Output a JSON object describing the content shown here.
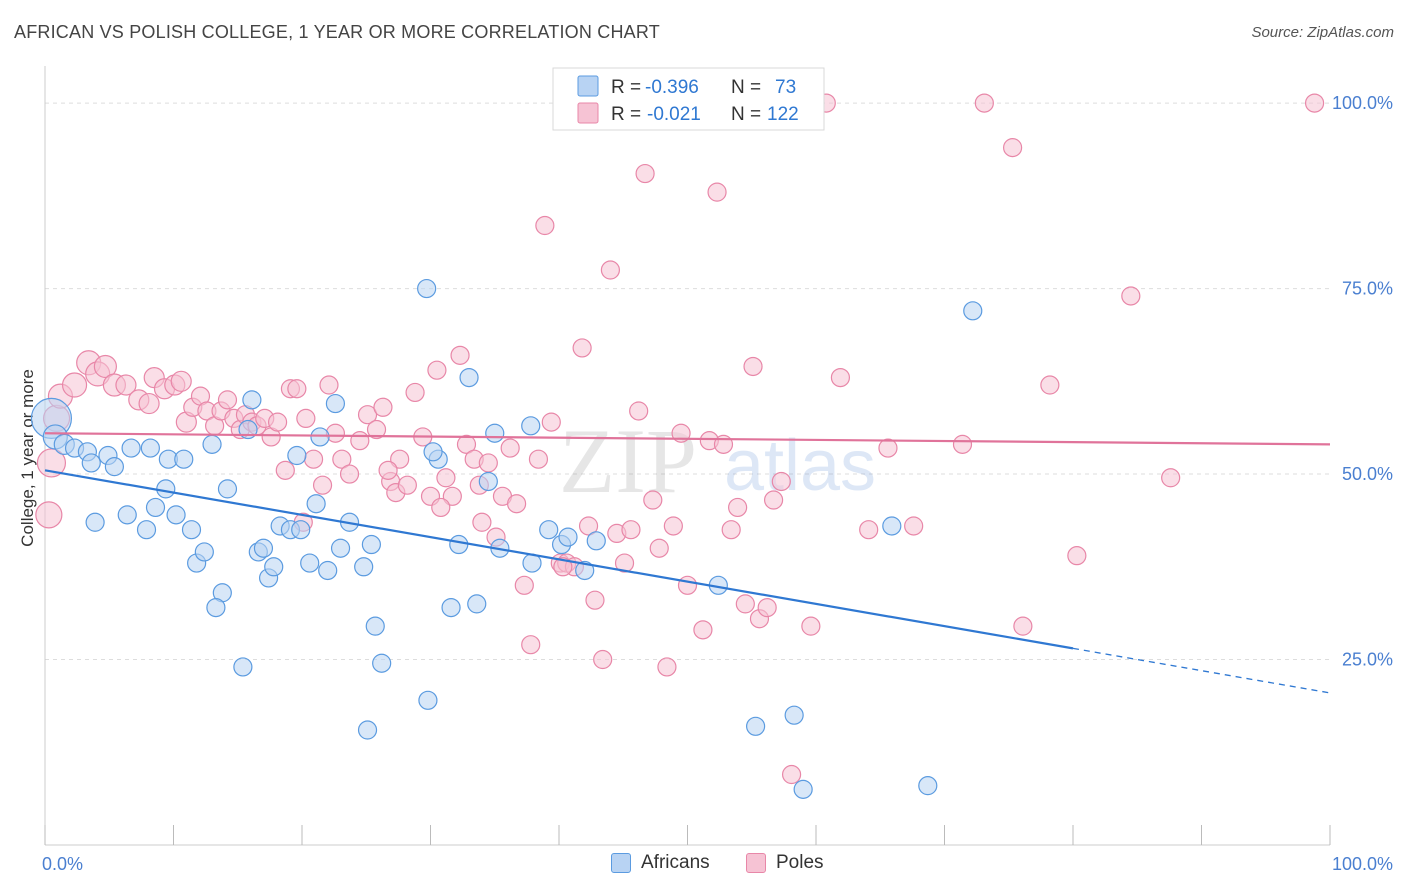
{
  "title": "AFRICAN VS POLISH COLLEGE, 1 YEAR OR MORE CORRELATION CHART",
  "source": "Source: ZipAtlas.com",
  "watermark": {
    "zip": "ZIP",
    "atlas": "atlas"
  },
  "colors": {
    "blue": "#5b9be0",
    "blue_fill": "#b8d3f3",
    "blue_line": "#2f78d2",
    "pink": "#e887a8",
    "pink_fill": "#f6c3d4",
    "pink_line": "#e0739a",
    "axis_text": "#4a7fd0",
    "grid": "#dddddd"
  },
  "legend": {
    "rows": [
      {
        "r_label": "R = ",
        "r_value": "-0.396",
        "n_label": "N = ",
        "n_value": "73"
      },
      {
        "r_label": "R = ",
        "r_value": "-0.021",
        "n_label": "N = ",
        "n_value": "122"
      }
    ],
    "bottom": [
      "Africans",
      "Poles"
    ]
  },
  "chart_data": {
    "type": "scatter",
    "title": "AFRICAN VS POLISH COLLEGE, 1 YEAR OR MORE CORRELATION CHART",
    "xlabel": "",
    "ylabel": "College, 1 year or more",
    "xlim": [
      0,
      100
    ],
    "ylim": [
      0,
      105
    ],
    "x_tick_labels": [
      "0.0%",
      "100.0%"
    ],
    "y_tick_labels": [
      "25.0%",
      "50.0%",
      "75.0%",
      "100.0%"
    ],
    "y_ticks": [
      25,
      50,
      75,
      100
    ],
    "grid": true,
    "legend_position": "top-center",
    "series": [
      {
        "name": "Africans",
        "r": -0.396,
        "n": 73,
        "trend": {
          "x0": 0,
          "y0": 50.5,
          "x1": 80,
          "y1": 26.5,
          "dashed_to_x": 100,
          "dashed_to_y": 20.5
        },
        "points": [
          [
            0.5,
            57.5,
            20
          ],
          [
            0.8,
            55,
            12
          ],
          [
            1.5,
            54,
            10
          ],
          [
            2.3,
            53.5,
            9
          ],
          [
            3.3,
            53,
            9
          ],
          [
            3.6,
            51.5,
            9
          ],
          [
            4.9,
            52.5,
            9
          ],
          [
            5.4,
            51,
            9
          ],
          [
            6.7,
            53.5,
            9
          ],
          [
            8.2,
            53.5,
            9
          ],
          [
            9.6,
            52,
            9
          ],
          [
            10.8,
            52,
            9
          ],
          [
            13,
            54,
            9
          ],
          [
            15.8,
            56,
            9
          ],
          [
            16.1,
            60,
            9
          ],
          [
            3.9,
            43.5,
            9
          ],
          [
            6.4,
            44.5,
            9
          ],
          [
            7.9,
            42.5,
            9
          ],
          [
            8.6,
            45.5,
            9
          ],
          [
            9.4,
            48,
            9
          ],
          [
            10.2,
            44.5,
            9
          ],
          [
            11.4,
            42.5,
            9
          ],
          [
            11.8,
            38,
            9
          ],
          [
            12.4,
            39.5,
            9
          ],
          [
            14.2,
            48,
            9
          ],
          [
            13.8,
            34,
            9
          ],
          [
            13.3,
            32,
            9
          ],
          [
            15.4,
            24,
            9
          ],
          [
            16.6,
            39.5,
            9
          ],
          [
            17,
            40,
            9
          ],
          [
            17.4,
            36,
            9
          ],
          [
            17.8,
            37.5,
            9
          ],
          [
            18.3,
            43,
            9
          ],
          [
            19.1,
            42.5,
            9
          ],
          [
            19.6,
            52.5,
            9
          ],
          [
            19.9,
            42.5,
            9
          ],
          [
            20.6,
            38,
            9
          ],
          [
            21.1,
            46,
            9
          ],
          [
            21.4,
            55,
            9
          ],
          [
            22,
            37,
            9
          ],
          [
            22.6,
            59.5,
            9
          ],
          [
            23,
            40,
            9
          ],
          [
            23.7,
            43.5,
            9
          ],
          [
            24.8,
            37.5,
            9
          ],
          [
            25.4,
            40.5,
            9
          ],
          [
            25.7,
            29.5,
            9
          ],
          [
            26.2,
            24.5,
            9
          ],
          [
            29.7,
            75,
            9
          ],
          [
            30.6,
            52,
            9
          ],
          [
            29.8,
            19.5,
            9
          ],
          [
            31.6,
            32,
            9
          ],
          [
            33,
            63,
            9
          ],
          [
            32.2,
            40.5,
            9
          ],
          [
            33.6,
            32.5,
            9
          ],
          [
            34.5,
            49,
            9
          ],
          [
            35,
            55.5,
            9
          ],
          [
            35.4,
            40,
            9
          ],
          [
            37.8,
            56.5,
            9
          ],
          [
            25.1,
            15.5,
            9
          ],
          [
            40.2,
            40.5,
            9
          ],
          [
            40.7,
            41.5,
            9
          ],
          [
            42,
            37,
            9
          ],
          [
            42.9,
            41,
            9
          ],
          [
            52.4,
            35,
            9
          ],
          [
            55.3,
            16,
            9
          ],
          [
            58.3,
            17.5,
            9
          ],
          [
            59,
            7.5,
            9
          ],
          [
            65.9,
            43,
            9
          ],
          [
            68.7,
            8,
            9
          ],
          [
            72.2,
            72,
            9
          ],
          [
            37.9,
            38,
            9
          ],
          [
            30.2,
            53,
            9
          ],
          [
            39.2,
            42.5,
            9
          ]
        ]
      },
      {
        "name": "Poles",
        "r": -0.021,
        "n": 122,
        "trend": {
          "x0": 0,
          "y0": 55.5,
          "x1": 100,
          "y1": 54
        },
        "points": [
          [
            0.3,
            44.5,
            13
          ],
          [
            0.5,
            51.5,
            14
          ],
          [
            0.9,
            57.5,
            13
          ],
          [
            1.2,
            60.5,
            12
          ],
          [
            2.3,
            62,
            12
          ],
          [
            3.4,
            65,
            12
          ],
          [
            4.1,
            63.5,
            12
          ],
          [
            4.7,
            64.5,
            11
          ],
          [
            5.4,
            62,
            11
          ],
          [
            6.3,
            62,
            10
          ],
          [
            7.3,
            60,
            10
          ],
          [
            8.1,
            59.5,
            10
          ],
          [
            8.5,
            63,
            10
          ],
          [
            9.3,
            61.5,
            10
          ],
          [
            10.1,
            62,
            10
          ],
          [
            10.6,
            62.5,
            10
          ],
          [
            11,
            57,
            10
          ],
          [
            11.5,
            59,
            9
          ],
          [
            12.1,
            60.5,
            9
          ],
          [
            12.6,
            58.5,
            9
          ],
          [
            13.2,
            56.5,
            9
          ],
          [
            13.7,
            58.5,
            9
          ],
          [
            14.2,
            60,
            9
          ],
          [
            14.7,
            57.5,
            9
          ],
          [
            15.2,
            56,
            9
          ],
          [
            15.6,
            58,
            9
          ],
          [
            16.1,
            57,
            9
          ],
          [
            16.5,
            56.5,
            9
          ],
          [
            17.1,
            57.5,
            9
          ],
          [
            17.6,
            55,
            9
          ],
          [
            18.1,
            57,
            9
          ],
          [
            18.7,
            50.5,
            9
          ],
          [
            19.1,
            61.5,
            9
          ],
          [
            19.6,
            61.5,
            9
          ],
          [
            20.3,
            57.5,
            9
          ],
          [
            20.9,
            52,
            9
          ],
          [
            21.6,
            48.5,
            9
          ],
          [
            22.1,
            62,
            9
          ],
          [
            22.6,
            55.5,
            9
          ],
          [
            23.1,
            52,
            9
          ],
          [
            23.7,
            50,
            9
          ],
          [
            24.5,
            54.5,
            9
          ],
          [
            25.1,
            58,
            9
          ],
          [
            25.8,
            56,
            9
          ],
          [
            26.3,
            59,
            9
          ],
          [
            26.9,
            49,
            9
          ],
          [
            27.3,
            47.5,
            9
          ],
          [
            27.6,
            52,
            9
          ],
          [
            28.2,
            48.5,
            9
          ],
          [
            28.8,
            61,
            9
          ],
          [
            29.4,
            55,
            9
          ],
          [
            30,
            47,
            9
          ],
          [
            30.5,
            64,
            9
          ],
          [
            31.2,
            49.5,
            9
          ],
          [
            31.7,
            47,
            9
          ],
          [
            32.3,
            66,
            9
          ],
          [
            32.8,
            54,
            9
          ],
          [
            33.4,
            52,
            9
          ],
          [
            34,
            43.5,
            9
          ],
          [
            34.5,
            51.5,
            9
          ],
          [
            35.1,
            41.5,
            9
          ],
          [
            35.6,
            47,
            9
          ],
          [
            36.2,
            53.5,
            9
          ],
          [
            36.7,
            46,
            9
          ],
          [
            37.3,
            35,
            9
          ],
          [
            37.8,
            27,
            9
          ],
          [
            38.4,
            52,
            9
          ],
          [
            38.9,
            83.5,
            9
          ],
          [
            39.4,
            57,
            9
          ],
          [
            40.1,
            38,
            9
          ],
          [
            40.6,
            38,
            9
          ],
          [
            41.2,
            37.5,
            9
          ],
          [
            41.8,
            67,
            9
          ],
          [
            42.3,
            43,
            9
          ],
          [
            42.8,
            33,
            9
          ],
          [
            43.4,
            25,
            9
          ],
          [
            44,
            77.5,
            9
          ],
          [
            44.5,
            42,
            9
          ],
          [
            45.1,
            38,
            9
          ],
          [
            45.6,
            42.5,
            9
          ],
          [
            46.2,
            58.5,
            9
          ],
          [
            46.7,
            90.5,
            9
          ],
          [
            47.3,
            46.5,
            9
          ],
          [
            47.8,
            40,
            9
          ],
          [
            48.4,
            24,
            9
          ],
          [
            48.9,
            43,
            9
          ],
          [
            49.5,
            55.5,
            9
          ],
          [
            50,
            35,
            9
          ],
          [
            50.6,
            100,
            9
          ],
          [
            51.2,
            29,
            9
          ],
          [
            51.7,
            54.5,
            9
          ],
          [
            52.3,
            88,
            9
          ],
          [
            52.8,
            54,
            9
          ],
          [
            53.4,
            42.5,
            9
          ],
          [
            53.9,
            45.5,
            9
          ],
          [
            54.5,
            32.5,
            9
          ],
          [
            55.1,
            64.5,
            9
          ],
          [
            55.6,
            30.5,
            9
          ],
          [
            56.2,
            32,
            9
          ],
          [
            56.7,
            46.5,
            9
          ],
          [
            57.3,
            49,
            9
          ],
          [
            59.6,
            29.5,
            9
          ],
          [
            60.8,
            100,
            9
          ],
          [
            61.9,
            63,
            9
          ],
          [
            64.1,
            42.5,
            9
          ],
          [
            65.6,
            53.5,
            9
          ],
          [
            67.6,
            43,
            9
          ],
          [
            71.4,
            54,
            9
          ],
          [
            73.1,
            100,
            9
          ],
          [
            75.3,
            94,
            9
          ],
          [
            76.1,
            29.5,
            9
          ],
          [
            78.2,
            62,
            9
          ],
          [
            80.3,
            39,
            9
          ],
          [
            84.5,
            74,
            9
          ],
          [
            87.6,
            49.5,
            9
          ],
          [
            98.8,
            100,
            9
          ],
          [
            58.1,
            9.5,
            9
          ],
          [
            40.3,
            37.5,
            9
          ],
          [
            30.8,
            45.5,
            9
          ],
          [
            20.1,
            43.5,
            9
          ],
          [
            26.7,
            50.5,
            9
          ],
          [
            33.8,
            48.5,
            9
          ]
        ]
      }
    ]
  }
}
